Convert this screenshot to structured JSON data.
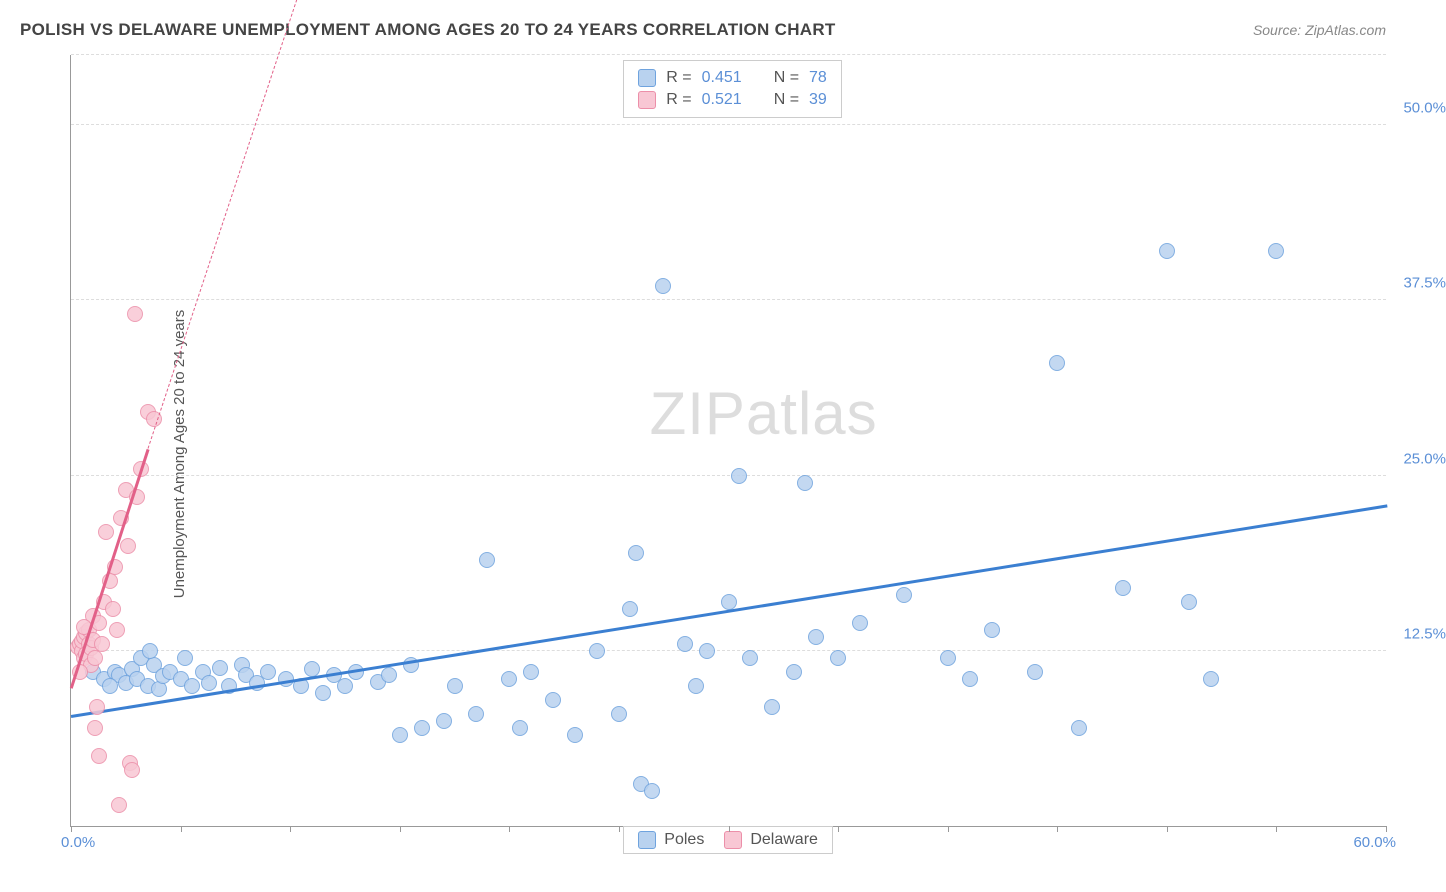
{
  "title": "POLISH VS DELAWARE UNEMPLOYMENT AMONG AGES 20 TO 24 YEARS CORRELATION CHART",
  "source": "Source: ZipAtlas.com",
  "ylabel": "Unemployment Among Ages 20 to 24 years",
  "watermark_a": "ZIP",
  "watermark_b": "atlas",
  "chart": {
    "type": "scatter",
    "xlim": [
      0,
      60
    ],
    "ylim": [
      0,
      55
    ],
    "xticks": [
      0,
      5,
      10,
      15,
      20,
      25,
      30,
      35,
      40,
      45,
      50,
      55,
      60
    ],
    "ygrid": [
      12.5,
      25.0,
      37.5,
      50.0,
      55.0
    ],
    "ytick_labels": [
      "12.5%",
      "25.0%",
      "37.5%",
      "50.0%"
    ],
    "xlabel_min": "0.0%",
    "xlabel_max": "60.0%",
    "background_color": "#ffffff",
    "grid_color": "#dddddd",
    "axis_color": "#999999",
    "label_color": "#5b8fd6",
    "marker_radius": 8,
    "marker_stroke": 1.5,
    "trend_width": 2.5
  },
  "series": [
    {
      "name": "Poles",
      "fill": "#b9d2ef",
      "stroke": "#6fa3de",
      "trend_color": "#3b7fd1",
      "R": "0.451",
      "N": "78",
      "trend": {
        "x1": 0,
        "y1": 8.0,
        "x2": 60,
        "y2": 23.0
      },
      "points": [
        [
          1.0,
          11.0
        ],
        [
          1.5,
          10.5
        ],
        [
          2.0,
          11.0
        ],
        [
          2.2,
          10.8
        ],
        [
          2.5,
          10.2
        ],
        [
          2.8,
          11.2
        ],
        [
          3.0,
          10.5
        ],
        [
          3.2,
          12.0
        ],
        [
          3.5,
          10.0
        ],
        [
          3.8,
          11.5
        ],
        [
          4.0,
          9.8
        ],
        [
          4.2,
          10.7
        ],
        [
          4.5,
          11.0
        ],
        [
          5.0,
          10.5
        ],
        [
          5.2,
          12.0
        ],
        [
          5.5,
          10.0
        ],
        [
          6.0,
          11.0
        ],
        [
          6.3,
          10.2
        ],
        [
          6.8,
          11.3
        ],
        [
          7.2,
          10.0
        ],
        [
          7.8,
          11.5
        ],
        [
          8.0,
          10.8
        ],
        [
          8.5,
          10.2
        ],
        [
          9.0,
          11.0
        ],
        [
          9.8,
          10.5
        ],
        [
          10.5,
          10.0
        ],
        [
          11.0,
          11.2
        ],
        [
          11.5,
          9.5
        ],
        [
          12.0,
          10.8
        ],
        [
          12.5,
          10.0
        ],
        [
          13.0,
          11.0
        ],
        [
          14.0,
          10.3
        ],
        [
          14.5,
          10.8
        ],
        [
          15.0,
          6.5
        ],
        [
          15.5,
          11.5
        ],
        [
          16.0,
          7.0
        ],
        [
          17.0,
          7.5
        ],
        [
          17.5,
          10.0
        ],
        [
          18.5,
          8.0
        ],
        [
          19.0,
          19.0
        ],
        [
          20.0,
          10.5
        ],
        [
          20.5,
          7.0
        ],
        [
          21.0,
          11.0
        ],
        [
          22.0,
          9.0
        ],
        [
          23.0,
          6.5
        ],
        [
          24.0,
          12.5
        ],
        [
          25.0,
          8.0
        ],
        [
          25.5,
          15.5
        ],
        [
          25.8,
          19.5
        ],
        [
          26.0,
          3.0
        ],
        [
          26.5,
          2.5
        ],
        [
          27.0,
          38.5
        ],
        [
          28.0,
          13.0
        ],
        [
          28.5,
          10.0
        ],
        [
          29.0,
          12.5
        ],
        [
          30.0,
          16.0
        ],
        [
          30.5,
          25.0
        ],
        [
          31.0,
          12.0
        ],
        [
          32.0,
          8.5
        ],
        [
          33.0,
          11.0
        ],
        [
          33.5,
          24.5
        ],
        [
          34.0,
          13.5
        ],
        [
          35.0,
          12.0
        ],
        [
          36.0,
          14.5
        ],
        [
          38.0,
          16.5
        ],
        [
          40.0,
          12.0
        ],
        [
          41.0,
          10.5
        ],
        [
          42.0,
          14.0
        ],
        [
          44.0,
          11.0
        ],
        [
          45.0,
          33.0
        ],
        [
          46.0,
          7.0
        ],
        [
          48.0,
          17.0
        ],
        [
          50.0,
          41.0
        ],
        [
          51.0,
          16.0
        ],
        [
          52.0,
          10.5
        ],
        [
          55.0,
          41.0
        ],
        [
          1.8,
          10.0
        ],
        [
          3.6,
          12.5
        ]
      ]
    },
    {
      "name": "Delaware",
      "fill": "#f8c7d4",
      "stroke": "#ec8fa9",
      "trend_color": "#e26088",
      "R": "0.521",
      "N": "39",
      "trend": {
        "x1": 0,
        "y1": 10.0,
        "x2": 3.5,
        "y2": 27.0
      },
      "trend_dash": {
        "x1": 3.5,
        "y1": 27.0,
        "x2": 10.5,
        "y2": 60.0
      },
      "points": [
        [
          0.3,
          12.8
        ],
        [
          0.4,
          13.0
        ],
        [
          0.5,
          12.5
        ],
        [
          0.5,
          13.2
        ],
        [
          0.6,
          13.5
        ],
        [
          0.6,
          12.0
        ],
        [
          0.7,
          13.8
        ],
        [
          0.7,
          12.3
        ],
        [
          0.8,
          13.0
        ],
        [
          0.8,
          14.0
        ],
        [
          0.9,
          12.7
        ],
        [
          0.9,
          11.5
        ],
        [
          1.0,
          13.3
        ],
        [
          1.0,
          15.0
        ],
        [
          1.1,
          12.0
        ],
        [
          1.1,
          7.0
        ],
        [
          1.2,
          8.5
        ],
        [
          1.3,
          14.5
        ],
        [
          1.4,
          13.0
        ],
        [
          1.5,
          16.0
        ],
        [
          1.6,
          21.0
        ],
        [
          1.8,
          17.5
        ],
        [
          1.9,
          15.5
        ],
        [
          2.0,
          18.5
        ],
        [
          2.1,
          14.0
        ],
        [
          2.3,
          22.0
        ],
        [
          2.5,
          24.0
        ],
        [
          2.6,
          20.0
        ],
        [
          2.7,
          4.5
        ],
        [
          2.8,
          4.0
        ],
        [
          2.9,
          36.5
        ],
        [
          3.0,
          23.5
        ],
        [
          3.2,
          25.5
        ],
        [
          3.5,
          29.5
        ],
        [
          3.8,
          29.0
        ],
        [
          1.3,
          5.0
        ],
        [
          2.2,
          1.5
        ],
        [
          0.4,
          11.0
        ],
        [
          0.6,
          14.2
        ]
      ]
    }
  ],
  "stats_labels": {
    "R": "R =",
    "N": "N ="
  },
  "legend": {
    "s1": "Poles",
    "s2": "Delaware"
  }
}
